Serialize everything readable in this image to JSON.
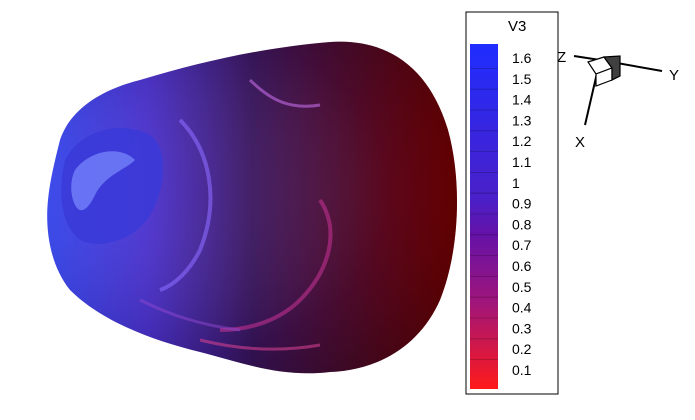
{
  "legend": {
    "title": "V3",
    "levels": [
      "1.6",
      "1.5",
      "1.4",
      "1.3",
      "1.2",
      "1.1",
      "1",
      "0.9",
      "0.8",
      "0.7",
      "0.6",
      "0.5",
      "0.4",
      "0.3",
      "0.2",
      "0.1"
    ],
    "color_top": "#1f2dff",
    "color_mid": "#5a12b8",
    "color_bottom": "#ff1a1a"
  },
  "axes": {
    "x_label": "X",
    "y_label": "Y",
    "z_label": "Z"
  },
  "surface": {
    "field": "V3",
    "color_high": "#3b4cff",
    "color_low": "#6a0000"
  }
}
